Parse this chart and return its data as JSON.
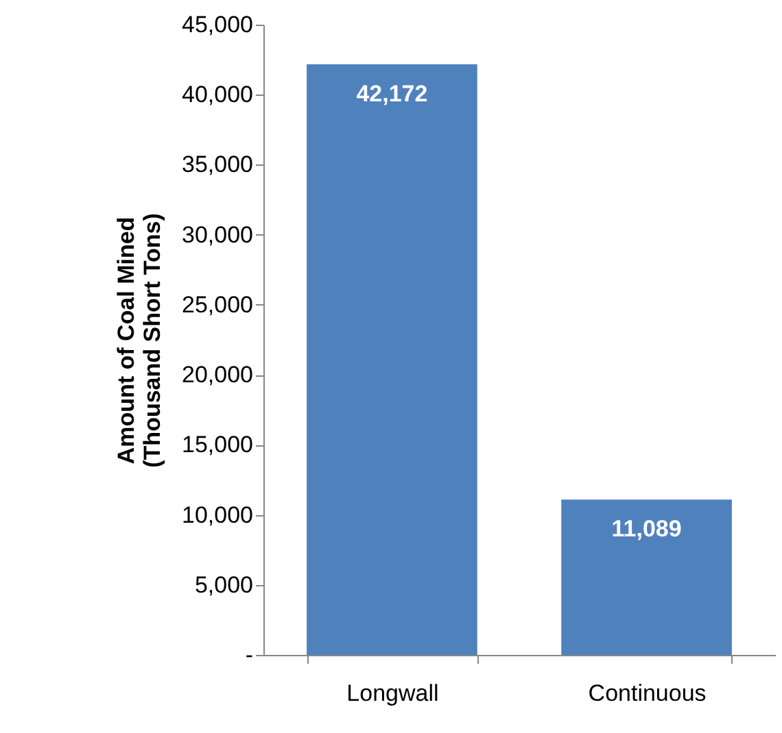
{
  "chart_data": {
    "type": "bar",
    "ylabel": "Amount of Coal Mined\n(Thousand Short Tons)",
    "categories": [
      "Longwall",
      "Continuous"
    ],
    "values": [
      42172,
      11089
    ],
    "color": "#4f81bd",
    "value_labels": [
      "42,172",
      "11,089"
    ],
    "ylim": [
      0,
      45000
    ],
    "yticks": [
      {
        "value": 0,
        "label": "-"
      },
      {
        "value": 5000,
        "label": "5,000"
      },
      {
        "value": 10000,
        "label": "10,000"
      },
      {
        "value": 15000,
        "label": "15,000"
      },
      {
        "value": 20000,
        "label": "20,000"
      },
      {
        "value": 25000,
        "label": "25,000"
      },
      {
        "value": 30000,
        "label": "30,000"
      },
      {
        "value": 35000,
        "label": "35,000"
      },
      {
        "value": 40000,
        "label": "40,000"
      },
      {
        "value": 45000,
        "label": "45,000"
      }
    ],
    "grid": false
  }
}
